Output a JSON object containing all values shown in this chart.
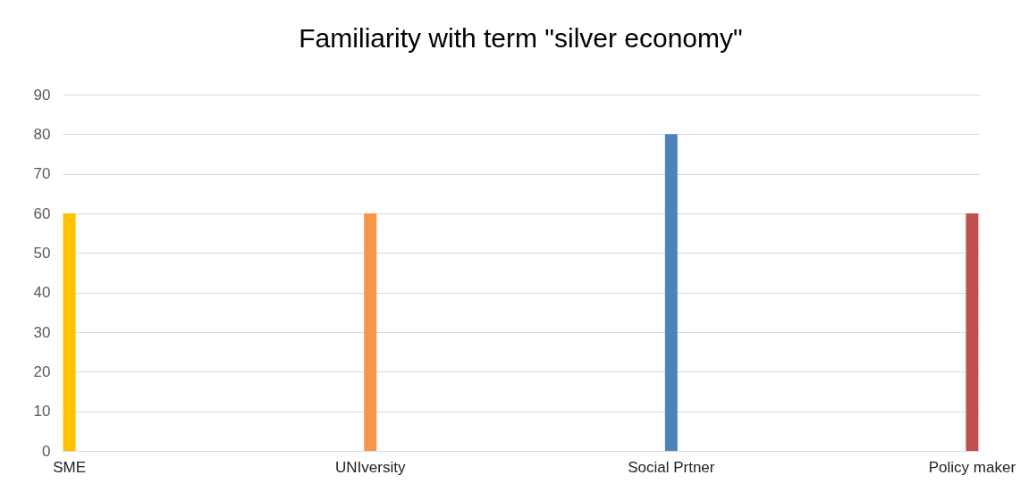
{
  "chart_data": {
    "type": "bar",
    "title": "Familiarity with term \"silver economy\"",
    "categories": [
      "SME",
      "UNIversity",
      "Social Prtner",
      "Policy maker"
    ],
    "values": [
      60,
      60,
      80,
      60
    ],
    "colors": [
      "#ffc000",
      "#f79646",
      "#4f81bd",
      "#c0504d"
    ],
    "ylim": [
      0,
      90
    ],
    "yticks": [
      0,
      10,
      20,
      30,
      40,
      50,
      60,
      70,
      80,
      90
    ],
    "grid": "y"
  }
}
